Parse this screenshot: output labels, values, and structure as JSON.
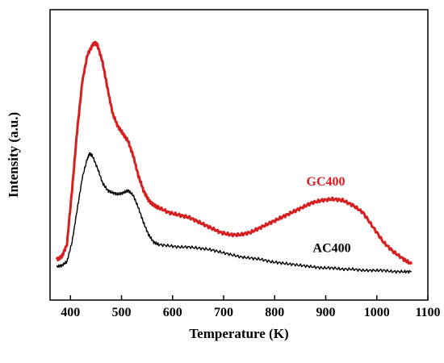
{
  "chart_data": {
    "type": "line",
    "title": "",
    "xlabel": "Temperature (K)",
    "ylabel": "Intensity (a.u.)",
    "xlim": [
      360,
      1100
    ],
    "ylim": [
      0,
      100
    ],
    "x_ticks": [
      400,
      500,
      600,
      700,
      800,
      900,
      1000,
      1100
    ],
    "grid": false,
    "legend": "inline labels",
    "series": [
      {
        "name": "GC400",
        "color": "#d42020",
        "x": [
          373,
          383,
          393,
          403,
          413,
          423,
          433,
          443,
          448,
          453,
          463,
          473,
          483,
          493,
          503,
          513,
          523,
          533,
          543,
          553,
          563,
          573,
          593,
          613,
          633,
          653,
          673,
          693,
          713,
          733,
          753,
          773,
          793,
          813,
          833,
          853,
          873,
          893,
          913,
          933,
          953,
          973,
          993,
          1013,
          1033,
          1053,
          1068
        ],
        "values": [
          10,
          11,
          16,
          38,
          62,
          82,
          93,
          97,
          98,
          97,
          90,
          79,
          69,
          64,
          61,
          58,
          52,
          44,
          38,
          34,
          32,
          31,
          29,
          28,
          27,
          25,
          23,
          21,
          20,
          20,
          21,
          23,
          25,
          27,
          29,
          31,
          33,
          34,
          34.5,
          34,
          32,
          29,
          23,
          17,
          13,
          10,
          8
        ]
      },
      {
        "name": "AC400",
        "color": "#000000",
        "x": [
          373,
          383,
          393,
          403,
          413,
          423,
          433,
          438,
          443,
          453,
          463,
          473,
          483,
          493,
          503,
          513,
          523,
          533,
          543,
          553,
          563,
          573,
          593,
          613,
          633,
          653,
          673,
          693,
          713,
          733,
          753,
          773,
          793,
          813,
          833,
          853,
          873,
          893,
          913,
          933,
          953,
          973,
          993,
          1013,
          1033,
          1053,
          1068
        ],
        "values": [
          7,
          7.5,
          9,
          17,
          30,
          43,
          51,
          53,
          52,
          47,
          41,
          38,
          37,
          36.5,
          37,
          38,
          36,
          31,
          25,
          20,
          17,
          16,
          15.5,
          15,
          15,
          14.5,
          14,
          13,
          12,
          11,
          10.5,
          10,
          9,
          8.5,
          8,
          7.5,
          7,
          6.5,
          6.5,
          6,
          6,
          5.5,
          5.5,
          5.5,
          5,
          5,
          5
        ]
      }
    ]
  }
}
